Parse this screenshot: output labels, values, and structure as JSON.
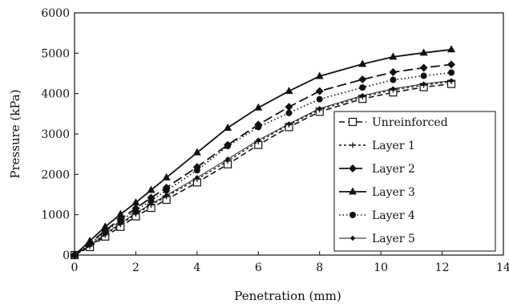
{
  "chart_data": {
    "type": "line",
    "title": "",
    "xlabel": "Penetration (mm)",
    "ylabel": "Pressure (kPa)",
    "xlim": [
      0,
      14
    ],
    "ylim": [
      0,
      6000
    ],
    "xticks": [
      "0",
      "2",
      "4",
      "6",
      "8",
      "10",
      "12",
      "14"
    ],
    "yticks": [
      "0",
      "1000",
      "2000",
      "3000",
      "4000",
      "5000",
      "6000"
    ],
    "grid": false,
    "legend_position": "bottom-right",
    "series": [
      {
        "name": "Unreinforced",
        "line": "dashed",
        "marker": "open-square",
        "points": [
          [
            0,
            0
          ],
          [
            0.5,
            200
          ],
          [
            1,
            460
          ],
          [
            1.5,
            700
          ],
          [
            2,
            960
          ],
          [
            2.5,
            1170
          ],
          [
            3,
            1370
          ],
          [
            4,
            1800
          ],
          [
            5,
            2250
          ],
          [
            6,
            2730
          ],
          [
            7,
            3170
          ],
          [
            8,
            3550
          ],
          [
            9.4,
            3870
          ],
          [
            10.4,
            4030
          ],
          [
            11.4,
            4160
          ],
          [
            12.3,
            4240
          ]
        ]
      },
      {
        "name": "Layer 1",
        "line": "short-dashed",
        "marker": "plus",
        "points": [
          [
            0,
            0
          ],
          [
            0.5,
            220
          ],
          [
            1,
            500
          ],
          [
            1.5,
            760
          ],
          [
            2,
            1020
          ],
          [
            2.5,
            1240
          ],
          [
            3,
            1450
          ],
          [
            4,
            1880
          ],
          [
            5,
            2330
          ],
          [
            6,
            2810
          ],
          [
            7,
            3230
          ],
          [
            8,
            3600
          ],
          [
            9.4,
            3920
          ],
          [
            10.4,
            4090
          ],
          [
            11.4,
            4210
          ],
          [
            12.3,
            4300
          ]
        ]
      },
      {
        "name": "Layer 2",
        "line": "long-dashed",
        "marker": "diamond",
        "points": [
          [
            0,
            0
          ],
          [
            0.5,
            290
          ],
          [
            1,
            610
          ],
          [
            1.5,
            890
          ],
          [
            2,
            1160
          ],
          [
            2.5,
            1420
          ],
          [
            3,
            1670
          ],
          [
            4,
            2180
          ],
          [
            5,
            2730
          ],
          [
            6,
            3230
          ],
          [
            7,
            3670
          ],
          [
            8,
            4060
          ],
          [
            9.4,
            4350
          ],
          [
            10.4,
            4530
          ],
          [
            11.4,
            4640
          ],
          [
            12.3,
            4720
          ]
        ]
      },
      {
        "name": "Layer 3",
        "line": "solid",
        "marker": "filled-triangle",
        "points": [
          [
            0,
            0
          ],
          [
            0.5,
            350
          ],
          [
            1,
            700
          ],
          [
            1.5,
            1010
          ],
          [
            2,
            1300
          ],
          [
            2.5,
            1610
          ],
          [
            3,
            1920
          ],
          [
            4,
            2540
          ],
          [
            5,
            3150
          ],
          [
            6,
            3650
          ],
          [
            7,
            4060
          ],
          [
            8,
            4430
          ],
          [
            9.4,
            4730
          ],
          [
            10.4,
            4910
          ],
          [
            11.4,
            5010
          ],
          [
            12.3,
            5090
          ]
        ]
      },
      {
        "name": "Layer 4",
        "line": "dotted",
        "marker": "filled-circle",
        "points": [
          [
            0,
            0
          ],
          [
            0.5,
            280
          ],
          [
            1,
            570
          ],
          [
            1.5,
            850
          ],
          [
            2,
            1100
          ],
          [
            2.5,
            1350
          ],
          [
            3,
            1600
          ],
          [
            4,
            2100
          ],
          [
            5,
            2700
          ],
          [
            6,
            3170
          ],
          [
            7,
            3520
          ],
          [
            8,
            3860
          ],
          [
            9.4,
            4150
          ],
          [
            10.4,
            4340
          ],
          [
            11.4,
            4440
          ],
          [
            12.3,
            4520
          ]
        ]
      },
      {
        "name": "Layer 5",
        "line": "thin-solid",
        "marker": "small-diamond",
        "points": [
          [
            0,
            0
          ],
          [
            0.5,
            240
          ],
          [
            1,
            520
          ],
          [
            1.5,
            790
          ],
          [
            2,
            1040
          ],
          [
            2.5,
            1270
          ],
          [
            3,
            1480
          ],
          [
            4,
            1920
          ],
          [
            5,
            2380
          ],
          [
            6,
            2850
          ],
          [
            7,
            3250
          ],
          [
            8,
            3630
          ],
          [
            9.4,
            3950
          ],
          [
            10.4,
            4120
          ],
          [
            11.4,
            4240
          ],
          [
            12.3,
            4320
          ]
        ]
      }
    ]
  }
}
